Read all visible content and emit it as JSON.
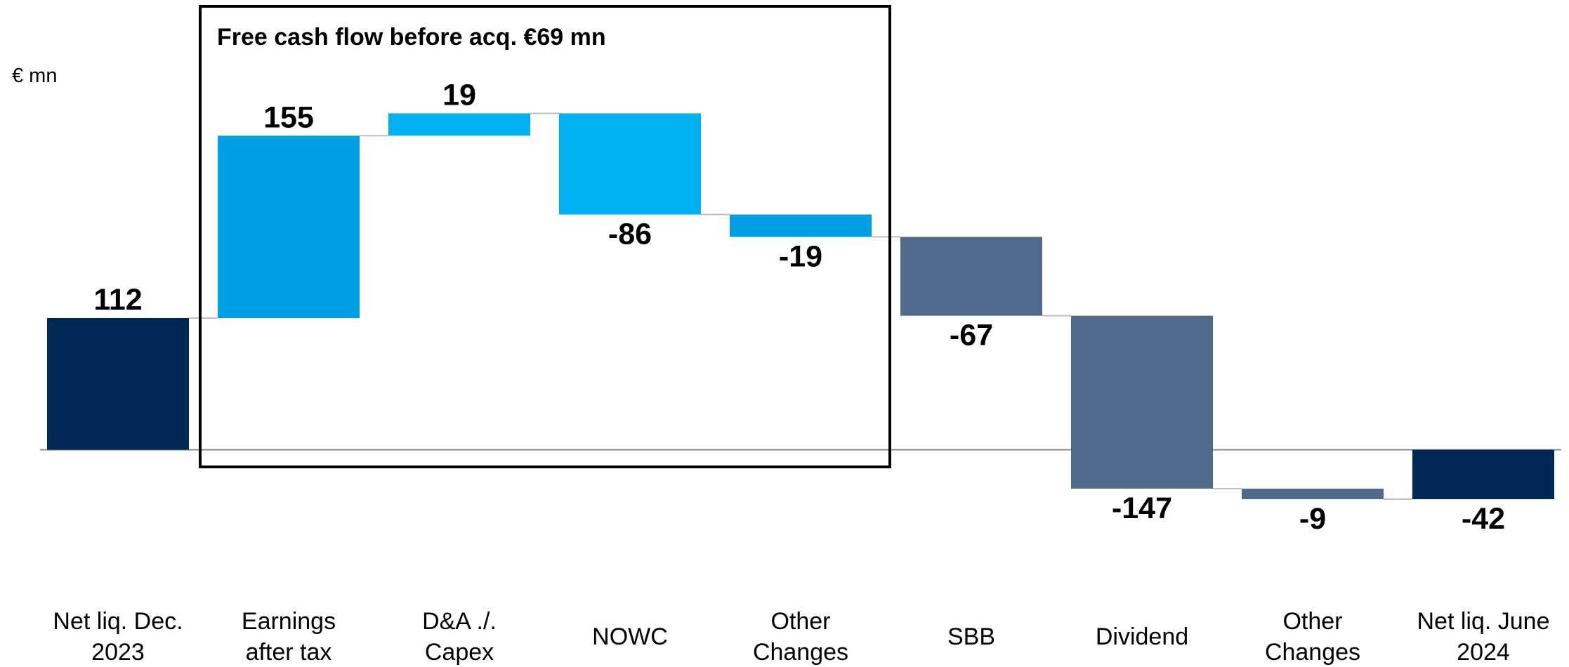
{
  "chart_data": {
    "type": "waterfall",
    "unit_label": "€ mn",
    "annotation": "Free cash flow before acq. €69 mn",
    "categories": [
      "Net liq. Dec.\n2023",
      "Earnings\nafter tax",
      "D&A ./.\nCapex",
      "NOWC",
      "Other\nChanges",
      "SBB",
      "Dividend",
      "Other\nChanges",
      "Net liq. June\n2024"
    ],
    "values": [
      112,
      155,
      19,
      -86,
      -19,
      -67,
      -147,
      -9,
      -42
    ],
    "measures": [
      "total",
      "relative",
      "relative",
      "relative",
      "relative",
      "relative",
      "relative",
      "relative",
      "total"
    ],
    "colors": [
      "#002855",
      "#009fe3",
      "#00b0f0",
      "#00b0f0",
      "#009fe3",
      "#4f6a8a",
      "#4f6a8a",
      "#4f6a8a",
      "#002855"
    ],
    "ylim": [
      -150,
      300
    ]
  }
}
